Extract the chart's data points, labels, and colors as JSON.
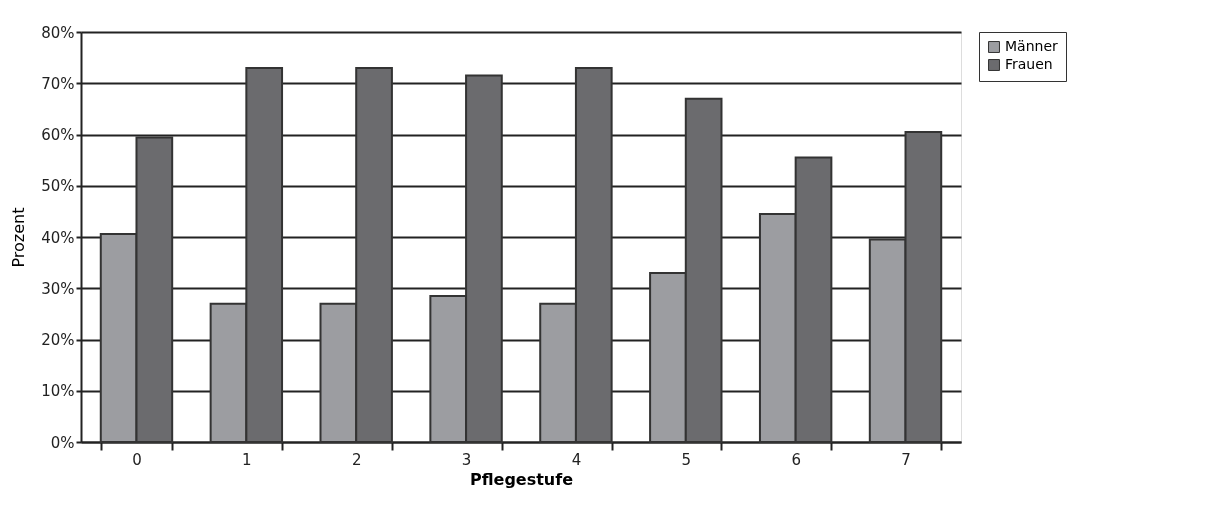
{
  "chart_data": {
    "type": "bar",
    "xlabel": "Pflegestufe",
    "ylabel": "Prozent",
    "categories": [
      "0",
      "1",
      "2",
      "3",
      "4",
      "5",
      "6",
      "7"
    ],
    "series": [
      {
        "name": "Männer",
        "color": "#9c9da1",
        "values": [
          40.6,
          27,
          27,
          28.5,
          27,
          33,
          44.5,
          39.5
        ]
      },
      {
        "name": "Frauen",
        "color": "#6b6b6e",
        "values": [
          59.4,
          73,
          73,
          71.5,
          73,
          67,
          55.5,
          60.5
        ]
      }
    ],
    "ylim": [
      0,
      80
    ],
    "yticks": [
      {
        "value": 0,
        "label": "0%"
      },
      {
        "value": 10,
        "label": "10%"
      },
      {
        "value": 20,
        "label": "20%"
      },
      {
        "value": 30,
        "label": "30%"
      },
      {
        "value": 40,
        "label": "40%"
      },
      {
        "value": 50,
        "label": "50%"
      },
      {
        "value": 60,
        "label": "60%"
      },
      {
        "value": 70,
        "label": "70%"
      },
      {
        "value": 80,
        "label": "80%"
      }
    ],
    "grid": "y",
    "legend": "top right"
  }
}
